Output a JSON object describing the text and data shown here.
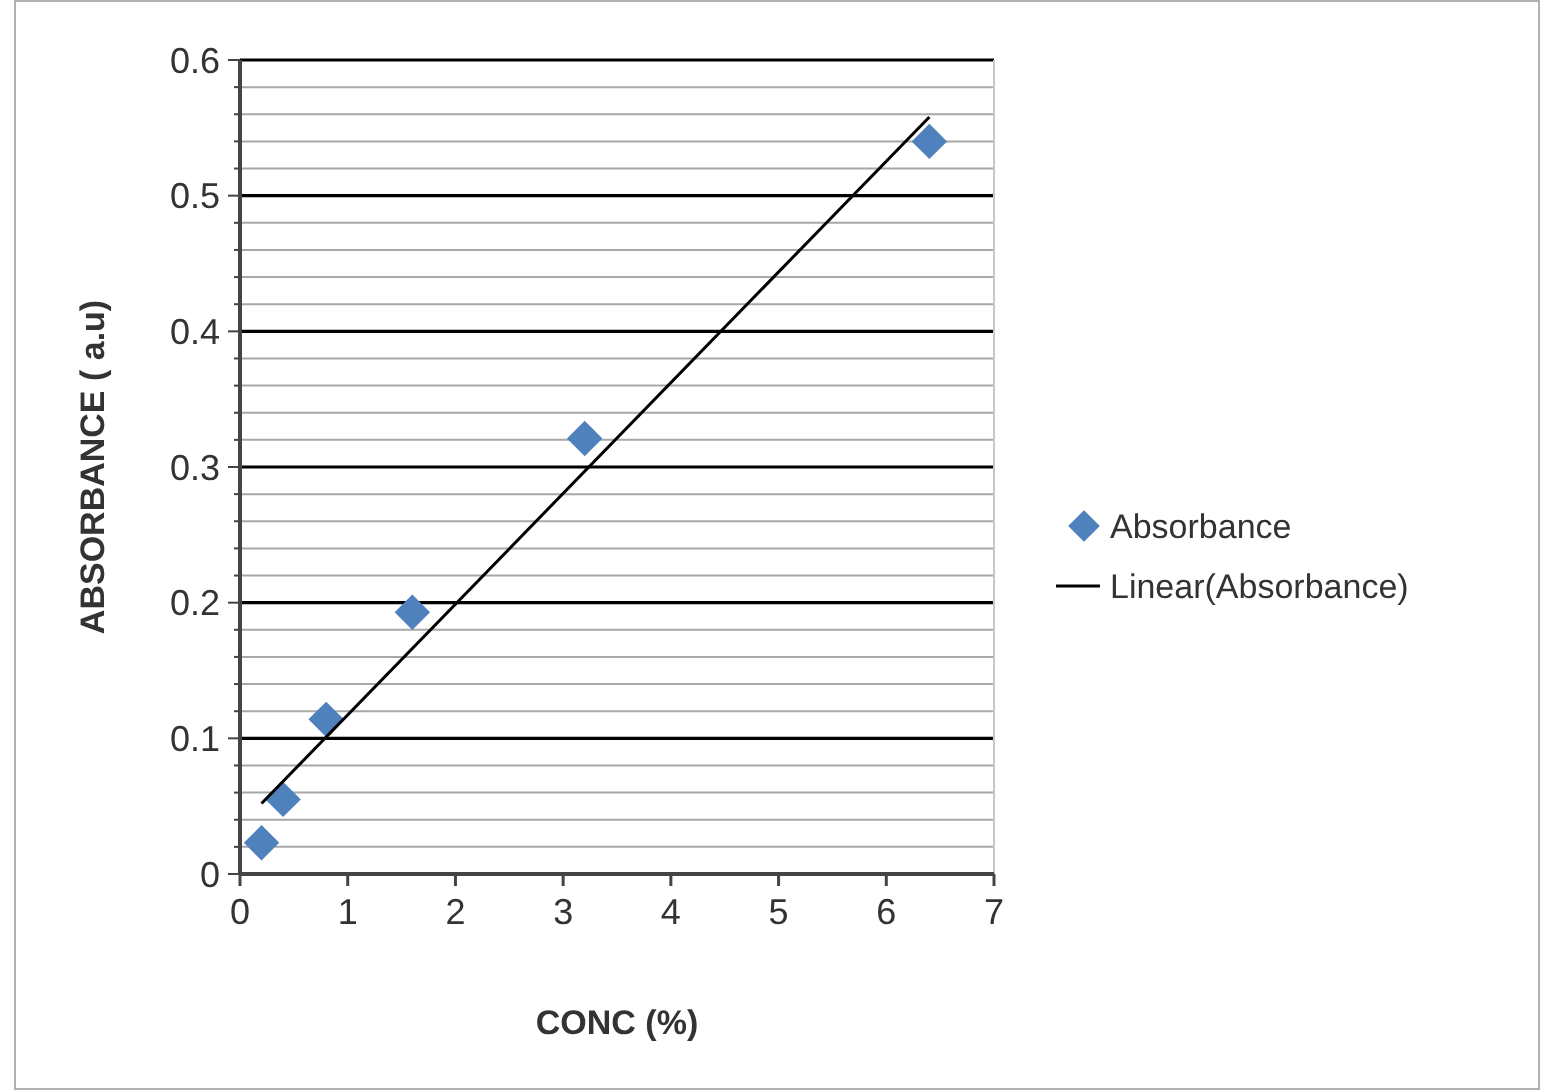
{
  "chart_data": {
    "type": "scatter",
    "xlabel": "CONC (%)",
    "ylabel": "ABSORBANCE ( a.u)",
    "xlim": [
      0,
      7
    ],
    "xticks": [
      0,
      1,
      2,
      3,
      4,
      5,
      6,
      7
    ],
    "ylim": [
      0,
      0.6
    ],
    "yticks": [
      0,
      {
        "value": 0.02,
        "label": null
      },
      {
        "value": 0.04,
        "label": null
      },
      {
        "value": 0.06,
        "label": null
      },
      {
        "value": 0.08,
        "label": null
      },
      0.1,
      {
        "value": 0.12,
        "label": null
      },
      {
        "value": 0.14,
        "label": null
      },
      {
        "value": 0.16,
        "label": null
      },
      {
        "value": 0.18,
        "label": null
      },
      0.2,
      {
        "value": 0.22,
        "label": null
      },
      {
        "value": 0.24,
        "label": null
      },
      {
        "value": 0.26,
        "label": null
      },
      {
        "value": 0.28,
        "label": null
      },
      0.3,
      {
        "value": 0.32,
        "label": null
      },
      {
        "value": 0.34,
        "label": null
      },
      {
        "value": 0.36,
        "label": null
      },
      {
        "value": 0.38,
        "label": null
      },
      0.4,
      {
        "value": 0.42,
        "label": null
      },
      {
        "value": 0.44,
        "label": null
      },
      {
        "value": 0.46,
        "label": null
      },
      {
        "value": 0.48,
        "label": null
      },
      0.5,
      {
        "value": 0.52,
        "label": null
      },
      {
        "value": 0.54,
        "label": null
      },
      {
        "value": 0.56,
        "label": null
      },
      {
        "value": 0.58,
        "label": null
      },
      0.6
    ],
    "grid": "y",
    "legend": "right",
    "series": [
      {
        "name": "Absorbance",
        "marker": "diamond",
        "color": "#4f81bd",
        "x": [
          0.2,
          0.4,
          0.8,
          1.6,
          3.2,
          6.4
        ],
        "values": [
          0.023,
          0.055,
          0.114,
          0.193,
          0.321,
          0.54
        ]
      },
      {
        "name": "Linear(Absorbance)",
        "type": "line",
        "marker": "none",
        "line_style": "solid",
        "color": "#000000",
        "x": [
          0.2,
          6.4
        ],
        "values": [
          0.052,
          0.558
        ]
      }
    ]
  }
}
